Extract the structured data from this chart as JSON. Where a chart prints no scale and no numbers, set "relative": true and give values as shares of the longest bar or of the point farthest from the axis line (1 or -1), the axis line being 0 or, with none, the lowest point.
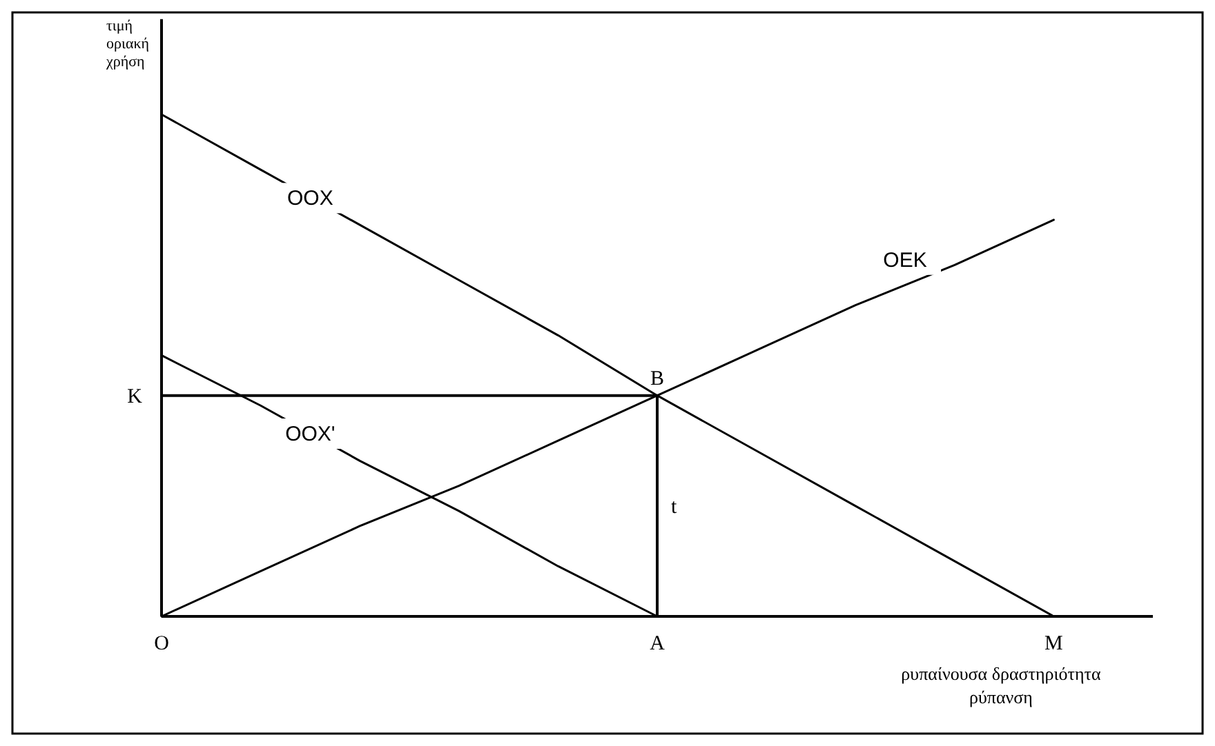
{
  "chart_data": {
    "type": "line",
    "relative": true,
    "xlabel": "ρυπαίνουσα δραστηριότητα ρύπανση",
    "ylabel": "τιμή οριακή χρήση",
    "tick_labels": "x",
    "marker": "none",
    "line_style": "solid",
    "categories": [
      "Ο",
      null,
      null,
      null,
      null,
      "Α",
      null,
      null,
      null,
      "Μ",
      null
    ],
    "series": [
      {
        "name": "ΟΟΧ",
        "color": "#000000",
        "values": [
          1,
          0.89,
          0.78,
          0.67,
          0.56,
          0.44,
          0.33,
          0.22,
          0.11,
          0,
          null
        ]
      },
      {
        "name": "ΟΟΧ'",
        "color": "#000000",
        "values": [
          0.52,
          0.42,
          0.31,
          0.21,
          0.1,
          0,
          null,
          null,
          null,
          null,
          null
        ]
      },
      {
        "name": "ΟΕΚ",
        "color": "#000000",
        "values": [
          0,
          0.09,
          0.18,
          0.26,
          0.35,
          0.44,
          0.53,
          0.62,
          0.7,
          0.79,
          null
        ]
      },
      {
        "color": "#000000",
        "values": [
          0.44,
          0.44,
          0.44,
          0.44,
          0.44,
          0.44,
          null,
          null,
          null,
          null,
          null
        ]
      },
      {
        "type": "bar",
        "color": "#000000",
        "values": [
          null,
          null,
          null,
          null,
          null,
          0.44,
          null,
          null,
          null,
          null,
          null
        ]
      }
    ],
    "annotations": [
      {
        "text": "Κ",
        "x": "Ο",
        "y": 0.44
      },
      {
        "text": "Β",
        "x": "Α",
        "y": 0.44
      },
      {
        "text": "t",
        "x": "Α",
        "y": 0.22
      }
    ]
  }
}
